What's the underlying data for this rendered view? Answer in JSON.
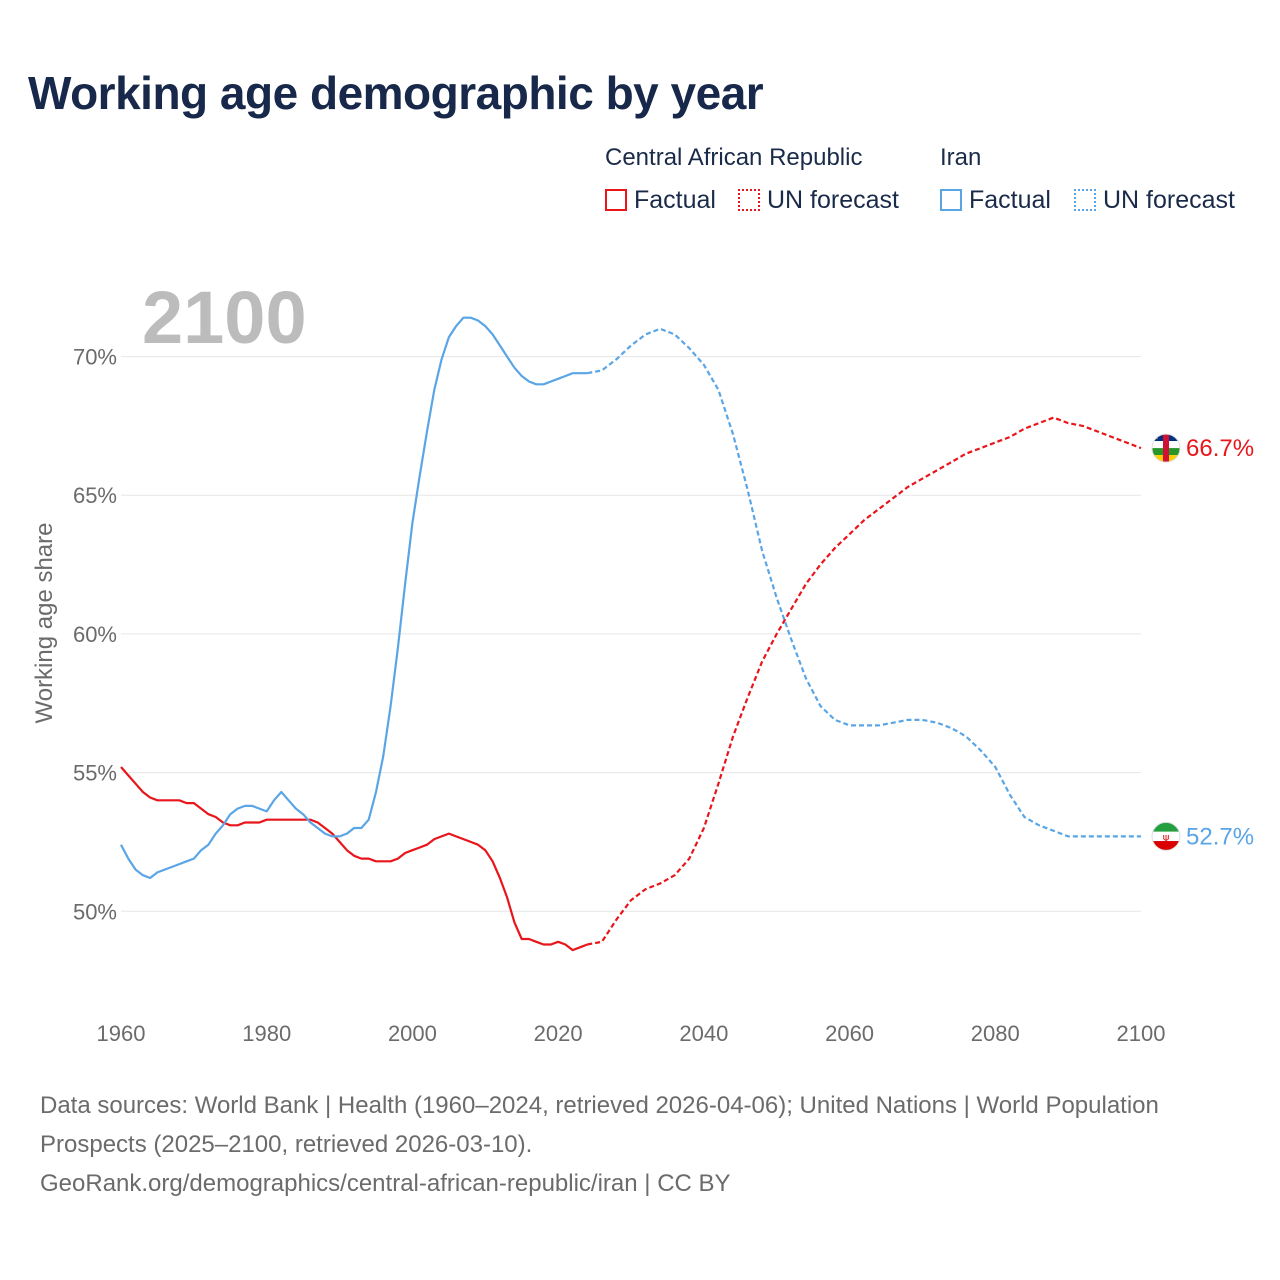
{
  "title": "Working age demographic by year",
  "legend": {
    "groups": [
      {
        "name": "Central African Republic",
        "factual_label": "Factual",
        "forecast_label": "UN forecast",
        "color": "#e8151b"
      },
      {
        "name": "Iran",
        "factual_label": "Factual",
        "forecast_label": "UN forecast",
        "color": "#5aa5e6"
      }
    ]
  },
  "year_label": "2100",
  "footer": {
    "sources": "Data sources: World Bank | Health (1960–2024, retrieved 2026-04-06); United Nations | World Population Prospects (2025–2100, retrieved 2026-03-10).",
    "link": "GeoRank.org/demographics/central-african-republic/iran | CC BY"
  },
  "chart_data": {
    "type": "line",
    "title": "Working age demographic by year",
    "xlabel": "",
    "ylabel": "Working age share",
    "xlim": [
      1960,
      2100
    ],
    "ylim": [
      46.8,
      72.4
    ],
    "x_ticks": [
      1960,
      1980,
      2000,
      2020,
      2040,
      2060,
      2080,
      2100
    ],
    "x_tick_labels": [
      "1960",
      "1980",
      "2000",
      "2020",
      "2040",
      "2060",
      "2080",
      "2100"
    ],
    "y_ticks": [
      50,
      55,
      60,
      65,
      70
    ],
    "y_tick_labels": [
      "50%",
      "55%",
      "60%",
      "65%",
      "70%"
    ],
    "grid": true,
    "series": [
      {
        "name": "Central African Republic",
        "color": "#e8151b",
        "end_label": "66.7%",
        "factual": {
          "x": [
            1960,
            1961,
            1962,
            1963,
            1964,
            1965,
            1966,
            1967,
            1968,
            1969,
            1970,
            1971,
            1972,
            1973,
            1974,
            1975,
            1976,
            1977,
            1978,
            1979,
            1980,
            1981,
            1982,
            1983,
            1984,
            1985,
            1986,
            1987,
            1988,
            1989,
            1990,
            1991,
            1992,
            1993,
            1994,
            1995,
            1996,
            1997,
            1998,
            1999,
            2000,
            2001,
            2002,
            2003,
            2004,
            2005,
            2006,
            2007,
            2008,
            2009,
            2010,
            2011,
            2012,
            2013,
            2014,
            2015,
            2016,
            2017,
            2018,
            2019,
            2020,
            2021,
            2022,
            2023,
            2024
          ],
          "y": [
            55.2,
            54.9,
            54.6,
            54.3,
            54.1,
            54.0,
            54.0,
            54.0,
            54.0,
            53.9,
            53.9,
            53.7,
            53.5,
            53.4,
            53.2,
            53.1,
            53.1,
            53.2,
            53.2,
            53.2,
            53.3,
            53.3,
            53.3,
            53.3,
            53.3,
            53.3,
            53.3,
            53.2,
            53.0,
            52.8,
            52.5,
            52.2,
            52.0,
            51.9,
            51.9,
            51.8,
            51.8,
            51.8,
            51.9,
            52.1,
            52.2,
            52.3,
            52.4,
            52.6,
            52.7,
            52.8,
            52.7,
            52.6,
            52.5,
            52.4,
            52.2,
            51.8,
            51.2,
            50.5,
            49.6,
            49.0,
            49.0,
            48.9,
            48.8,
            48.8,
            48.9,
            48.8,
            48.6,
            48.7,
            48.8
          ]
        },
        "forecast": {
          "x": [
            2024,
            2026,
            2028,
            2030,
            2032,
            2034,
            2036,
            2038,
            2040,
            2042,
            2044,
            2046,
            2048,
            2050,
            2052,
            2054,
            2056,
            2058,
            2060,
            2062,
            2064,
            2066,
            2068,
            2070,
            2072,
            2074,
            2076,
            2078,
            2080,
            2082,
            2084,
            2086,
            2088,
            2090,
            2092,
            2094,
            2096,
            2098,
            2100
          ],
          "y": [
            48.8,
            48.9,
            49.7,
            50.4,
            50.8,
            51.0,
            51.3,
            51.9,
            53.0,
            54.6,
            56.3,
            57.7,
            59.0,
            60.0,
            60.9,
            61.8,
            62.5,
            63.1,
            63.6,
            64.1,
            64.5,
            64.9,
            65.3,
            65.6,
            65.9,
            66.2,
            66.5,
            66.7,
            66.9,
            67.1,
            67.4,
            67.6,
            67.8,
            67.6,
            67.5,
            67.3,
            67.1,
            66.9,
            66.7
          ]
        }
      },
      {
        "name": "Iran",
        "color": "#5aa5e6",
        "end_label": "52.7%",
        "factual": {
          "x": [
            1960,
            1961,
            1962,
            1963,
            1964,
            1965,
            1966,
            1967,
            1968,
            1969,
            1970,
            1971,
            1972,
            1973,
            1974,
            1975,
            1976,
            1977,
            1978,
            1979,
            1980,
            1981,
            1982,
            1983,
            1984,
            1985,
            1986,
            1987,
            1988,
            1989,
            1990,
            1991,
            1992,
            1993,
            1994,
            1995,
            1996,
            1997,
            1998,
            1999,
            2000,
            2001,
            2002,
            2003,
            2004,
            2005,
            2006,
            2007,
            2008,
            2009,
            2010,
            2011,
            2012,
            2013,
            2014,
            2015,
            2016,
            2017,
            2018,
            2019,
            2020,
            2021,
            2022,
            2023,
            2024
          ],
          "y": [
            52.4,
            51.9,
            51.5,
            51.3,
            51.2,
            51.4,
            51.5,
            51.6,
            51.7,
            51.8,
            51.9,
            52.2,
            52.4,
            52.8,
            53.1,
            53.5,
            53.7,
            53.8,
            53.8,
            53.7,
            53.6,
            54.0,
            54.3,
            54.0,
            53.7,
            53.5,
            53.2,
            53.0,
            52.8,
            52.7,
            52.7,
            52.8,
            53.0,
            53.0,
            53.3,
            54.3,
            55.6,
            57.4,
            59.5,
            61.8,
            64.0,
            65.7,
            67.3,
            68.8,
            69.9,
            70.7,
            71.1,
            71.4,
            71.4,
            71.3,
            71.1,
            70.8,
            70.4,
            70.0,
            69.6,
            69.3,
            69.1,
            69.0,
            69.0,
            69.1,
            69.2,
            69.3,
            69.4,
            69.4,
            69.4
          ]
        },
        "forecast": {
          "x": [
            2024,
            2026,
            2028,
            2030,
            2032,
            2034,
            2036,
            2038,
            2040,
            2042,
            2044,
            2046,
            2048,
            2050,
            2052,
            2054,
            2056,
            2058,
            2060,
            2062,
            2064,
            2066,
            2068,
            2070,
            2072,
            2074,
            2076,
            2078,
            2080,
            2082,
            2084,
            2086,
            2088,
            2090,
            2092,
            2094,
            2096,
            2098,
            2100
          ],
          "y": [
            69.4,
            69.5,
            69.9,
            70.4,
            70.8,
            71.0,
            70.8,
            70.3,
            69.7,
            68.8,
            67.2,
            65.2,
            63.0,
            61.3,
            59.8,
            58.4,
            57.4,
            56.9,
            56.7,
            56.7,
            56.7,
            56.8,
            56.9,
            56.9,
            56.8,
            56.6,
            56.3,
            55.8,
            55.2,
            54.2,
            53.4,
            53.1,
            52.9,
            52.7,
            52.7,
            52.7,
            52.7,
            52.7,
            52.7
          ]
        }
      }
    ]
  }
}
